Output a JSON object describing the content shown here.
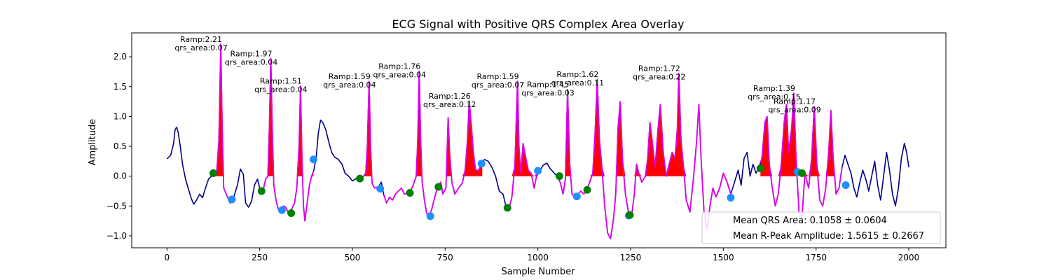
{
  "chart_data": {
    "type": "line",
    "title": "ECG Signal with Positive QRS Complex Area Overlay",
    "xlabel": "Sample Number",
    "ylabel": "Amplitude",
    "xlim": [
      -95,
      2100
    ],
    "ylim": [
      -1.2,
      2.4
    ],
    "xticks": [
      0,
      250,
      500,
      750,
      1000,
      1250,
      1500,
      1750,
      2000
    ],
    "yticks": [
      -1.0,
      -0.5,
      0.0,
      0.5,
      1.0,
      1.5,
      2.0
    ],
    "grid": false,
    "legend_position": "lower right",
    "legend": [
      "Mean QRS Area: 0.1058 ± 0.0604",
      "Mean R-Peak Amplitude: 1.5615 ± 0.2667"
    ],
    "colors": {
      "signal": "#00008b",
      "qrs_segment": "#dd00ee",
      "area_fill": "#ff0000",
      "onset_marker": "#008000",
      "offset_marker": "#1e90ff"
    },
    "r_peaks": [
      {
        "x": 145,
        "amp": 2.21,
        "area": 0.07,
        "label1": "Ramp:2.21",
        "label2": "qrs_area:0.07",
        "ly": 2.12
      },
      {
        "x": 280,
        "amp": 1.97,
        "area": 0.04,
        "label1": "Ramp:1.97",
        "label2": "qrs_area:0.04",
        "ly": 1.88
      },
      {
        "x": 360,
        "amp": 1.51,
        "area": 0.04,
        "label1": "Ramp:1.51",
        "label2": "qrs_area:0.04",
        "ly": 1.42
      },
      {
        "x": 545,
        "amp": 1.59,
        "area": 0.04,
        "label1": "Ramp:1.59",
        "label2": "qrs_area:0.04",
        "ly": 1.5
      },
      {
        "x": 680,
        "amp": 1.76,
        "area": 0.04,
        "label1": "Ramp:1.76",
        "label2": "qrs_area:0.04",
        "ly": 1.67
      },
      {
        "x": 815,
        "amp": 1.26,
        "area": 0.12,
        "label1": "Ramp:1.26",
        "label2": "qrs_area:0.12",
        "ly": 1.17
      },
      {
        "x": 945,
        "amp": 1.59,
        "area": 0.07,
        "label1": "Ramp:1.59",
        "label2": "qrs_area:0.07",
        "ly": 1.5
      },
      {
        "x": 1080,
        "amp": 1.45,
        "area": 0.03,
        "label1": "Ramp:1.45",
        "label2": "qrs_area:0.03",
        "ly": 1.36
      },
      {
        "x": 1160,
        "amp": 1.62,
        "area": 0.11,
        "label1": "Ramp:1.62",
        "label2": "qrs_area:0.11",
        "ly": 1.53
      },
      {
        "x": 1380,
        "amp": 1.72,
        "area": 0.22,
        "label1": "Ramp:1.72",
        "label2": "qrs_area:0.22",
        "ly": 1.63
      },
      {
        "x": 1690,
        "amp": 1.39,
        "area": 0.15,
        "label1": "Ramp:1.39",
        "label2": "qrs_area:0.15",
        "ly": 1.3
      },
      {
        "x": 1745,
        "amp": 1.17,
        "area": 0.09,
        "label1": "Ramp:1.17",
        "label2": "qrs_area:0.09",
        "ly": 1.08
      }
    ],
    "signal": [
      [
        0,
        0.29
      ],
      [
        10,
        0.35
      ],
      [
        18,
        0.55
      ],
      [
        22,
        0.78
      ],
      [
        26,
        0.82
      ],
      [
        30,
        0.74
      ],
      [
        36,
        0.5
      ],
      [
        42,
        0.2
      ],
      [
        50,
        -0.05
      ],
      [
        58,
        -0.22
      ],
      [
        66,
        -0.38
      ],
      [
        72,
        -0.47
      ],
      [
        80,
        -0.4
      ],
      [
        88,
        -0.3
      ],
      [
        96,
        -0.36
      ],
      [
        104,
        -0.2
      ],
      [
        112,
        -0.05
      ],
      [
        120,
        0.0
      ],
      [
        128,
        0.08
      ],
      [
        134,
        0.05
      ],
      [
        140,
        0.6
      ],
      [
        145,
        2.21
      ],
      [
        149,
        0.8
      ],
      [
        153,
        -0.2
      ],
      [
        160,
        -0.3
      ],
      [
        170,
        -0.45
      ],
      [
        180,
        -0.35
      ],
      [
        190,
        -0.15
      ],
      [
        198,
        0.12
      ],
      [
        206,
        0.03
      ],
      [
        212,
        -0.45
      ],
      [
        220,
        -0.52
      ],
      [
        228,
        -0.42
      ],
      [
        236,
        -0.15
      ],
      [
        244,
        -0.05
      ],
      [
        252,
        -0.25
      ],
      [
        260,
        -0.22
      ],
      [
        266,
        -0.05
      ],
      [
        272,
        0.0
      ],
      [
        276,
        0.8
      ],
      [
        280,
        1.97
      ],
      [
        284,
        0.8
      ],
      [
        288,
        -0.15
      ],
      [
        294,
        -0.4
      ],
      [
        300,
        -0.55
      ],
      [
        306,
        -0.58
      ],
      [
        314,
        -0.5
      ],
      [
        320,
        -0.52
      ],
      [
        328,
        -0.62
      ],
      [
        336,
        -0.55
      ],
      [
        344,
        -0.45
      ],
      [
        350,
        -0.2
      ],
      [
        356,
        0.5
      ],
      [
        360,
        1.51
      ],
      [
        364,
        0.3
      ],
      [
        368,
        -0.5
      ],
      [
        372,
        -0.75
      ],
      [
        378,
        -0.45
      ],
      [
        384,
        -0.15
      ],
      [
        390,
        0.0
      ],
      [
        396,
        0.1
      ],
      [
        402,
        0.3
      ],
      [
        408,
        0.72
      ],
      [
        414,
        0.94
      ],
      [
        420,
        0.9
      ],
      [
        428,
        0.78
      ],
      [
        436,
        0.58
      ],
      [
        444,
        0.4
      ],
      [
        452,
        0.32
      ],
      [
        462,
        0.28
      ],
      [
        472,
        0.2
      ],
      [
        480,
        0.05
      ],
      [
        490,
        0.0
      ],
      [
        500,
        -0.08
      ],
      [
        510,
        -0.04
      ],
      [
        520,
        -0.02
      ],
      [
        530,
        0.0
      ],
      [
        536,
        0.05
      ],
      [
        540,
        0.5
      ],
      [
        545,
        1.59
      ],
      [
        549,
        0.5
      ],
      [
        553,
        -0.12
      ],
      [
        560,
        -0.2
      ],
      [
        570,
        -0.18
      ],
      [
        578,
        -0.1
      ],
      [
        584,
        -0.3
      ],
      [
        592,
        -0.45
      ],
      [
        600,
        -0.35
      ],
      [
        608,
        -0.4
      ],
      [
        616,
        -0.3
      ],
      [
        624,
        -0.25
      ],
      [
        632,
        -0.2
      ],
      [
        640,
        -0.3
      ],
      [
        648,
        -0.28
      ],
      [
        656,
        -0.25
      ],
      [
        664,
        -0.15
      ],
      [
        672,
        0.0
      ],
      [
        676,
        0.6
      ],
      [
        680,
        1.76
      ],
      [
        684,
        0.6
      ],
      [
        688,
        -0.1
      ],
      [
        694,
        -0.4
      ],
      [
        700,
        -0.62
      ],
      [
        706,
        -0.68
      ],
      [
        714,
        -0.55
      ],
      [
        722,
        -0.35
      ],
      [
        730,
        -0.18
      ],
      [
        738,
        -0.1
      ],
      [
        744,
        -0.3
      ],
      [
        752,
        -0.2
      ],
      [
        758,
        0.98
      ],
      [
        762,
        0.4
      ],
      [
        768,
        -0.1
      ],
      [
        776,
        -0.3
      ],
      [
        786,
        -0.2
      ],
      [
        796,
        -0.12
      ],
      [
        804,
        0.1
      ],
      [
        810,
        0.6
      ],
      [
        815,
        1.26
      ],
      [
        820,
        0.9
      ],
      [
        826,
        0.4
      ],
      [
        832,
        0.1
      ],
      [
        840,
        0.1
      ],
      [
        848,
        0.2
      ],
      [
        856,
        0.28
      ],
      [
        866,
        0.25
      ],
      [
        876,
        0.15
      ],
      [
        886,
        0.0
      ],
      [
        896,
        -0.25
      ],
      [
        906,
        -0.3
      ],
      [
        914,
        -0.5
      ],
      [
        922,
        -0.55
      ],
      [
        930,
        -0.35
      ],
      [
        938,
        0.2
      ],
      [
        942,
        1.0
      ],
      [
        945,
        1.59
      ],
      [
        949,
        0.5
      ],
      [
        954,
        0.05
      ],
      [
        960,
        0.55
      ],
      [
        966,
        0.35
      ],
      [
        974,
        0.1
      ],
      [
        982,
        0.05
      ],
      [
        990,
        -0.2
      ],
      [
        998,
        0.05
      ],
      [
        1006,
        0.1
      ],
      [
        1014,
        0.18
      ],
      [
        1024,
        0.22
      ],
      [
        1034,
        0.12
      ],
      [
        1044,
        0.05
      ],
      [
        1052,
        0.0
      ],
      [
        1060,
        -0.1
      ],
      [
        1068,
        -0.3
      ],
      [
        1074,
        -0.05
      ],
      [
        1080,
        1.45
      ],
      [
        1086,
        0.2
      ],
      [
        1092,
        -0.3
      ],
      [
        1100,
        -0.35
      ],
      [
        1108,
        -0.3
      ],
      [
        1116,
        -0.25
      ],
      [
        1124,
        -0.3
      ],
      [
        1132,
        -0.22
      ],
      [
        1140,
        -0.1
      ],
      [
        1148,
        0.05
      ],
      [
        1154,
        0.7
      ],
      [
        1160,
        1.62
      ],
      [
        1166,
        0.6
      ],
      [
        1172,
        0.2
      ],
      [
        1180,
        -0.5
      ],
      [
        1188,
        -0.95
      ],
      [
        1196,
        -1.05
      ],
      [
        1204,
        -0.7
      ],
      [
        1210,
        -0.3
      ],
      [
        1216,
        0.8
      ],
      [
        1222,
        1.25
      ],
      [
        1228,
        0.3
      ],
      [
        1236,
        -0.3
      ],
      [
        1244,
        -0.6
      ],
      [
        1252,
        -0.7
      ],
      [
        1260,
        -0.3
      ],
      [
        1266,
        0.2
      ],
      [
        1272,
        0.05
      ],
      [
        1280,
        -0.1
      ],
      [
        1290,
        0.0
      ],
      [
        1296,
        0.3
      ],
      [
        1302,
        0.9
      ],
      [
        1308,
        0.6
      ],
      [
        1316,
        0.15
      ],
      [
        1324,
        0.8
      ],
      [
        1330,
        1.2
      ],
      [
        1338,
        0.4
      ],
      [
        1346,
        0.0
      ],
      [
        1354,
        0.2
      ],
      [
        1362,
        0.4
      ],
      [
        1370,
        0.3
      ],
      [
        1376,
        0.8
      ],
      [
        1380,
        1.72
      ],
      [
        1386,
        0.6
      ],
      [
        1392,
        0.2
      ],
      [
        1400,
        -0.4
      ],
      [
        1410,
        -0.6
      ],
      [
        1420,
        0.0
      ],
      [
        1428,
        0.6
      ],
      [
        1434,
        1.2
      ],
      [
        1440,
        0.3
      ],
      [
        1448,
        -0.6
      ],
      [
        1456,
        -0.9
      ],
      [
        1464,
        -0.5
      ],
      [
        1472,
        -0.2
      ],
      [
        1480,
        -0.35
      ],
      [
        1490,
        -0.2
      ],
      [
        1500,
        0.05
      ],
      [
        1510,
        -0.1
      ],
      [
        1520,
        -0.3
      ],
      [
        1530,
        -0.1
      ],
      [
        1540,
        0.1
      ],
      [
        1548,
        -0.15
      ],
      [
        1556,
        0.3
      ],
      [
        1564,
        0.4
      ],
      [
        1572,
        0.0
      ],
      [
        1580,
        0.2
      ],
      [
        1588,
        0.05
      ],
      [
        1596,
        0.15
      ],
      [
        1604,
        0.3
      ],
      [
        1612,
        0.9
      ],
      [
        1618,
        1.0
      ],
      [
        1624,
        0.2
      ],
      [
        1632,
        -0.2
      ],
      [
        1640,
        -0.5
      ],
      [
        1648,
        -0.3
      ],
      [
        1656,
        0.2
      ],
      [
        1664,
        0.9
      ],
      [
        1670,
        1.2
      ],
      [
        1676,
        0.4
      ],
      [
        1684,
        0.8
      ],
      [
        1690,
        1.39
      ],
      [
        1696,
        0.3
      ],
      [
        1704,
        -0.6
      ],
      [
        1712,
        -0.7
      ],
      [
        1720,
        0.05
      ],
      [
        1730,
        -0.2
      ],
      [
        1738,
        0.3
      ],
      [
        1745,
        1.17
      ],
      [
        1752,
        0.2
      ],
      [
        1760,
        -0.4
      ],
      [
        1768,
        -0.5
      ],
      [
        1776,
        -0.2
      ],
      [
        1784,
        0.4
      ],
      [
        1790,
        1.1
      ],
      [
        1796,
        0.3
      ],
      [
        1804,
        -0.3
      ],
      [
        1812,
        -0.2
      ],
      [
        1820,
        0.15
      ],
      [
        1828,
        0.35
      ],
      [
        1836,
        0.2
      ],
      [
        1844,
        0.05
      ],
      [
        1852,
        -0.2
      ],
      [
        1860,
        -0.35
      ],
      [
        1868,
        -0.1
      ],
      [
        1876,
        0.1
      ],
      [
        1884,
        -0.05
      ],
      [
        1892,
        -0.25
      ],
      [
        1900,
        0.0
      ],
      [
        1908,
        0.25
      ],
      [
        1916,
        -0.15
      ],
      [
        1924,
        -0.4
      ],
      [
        1932,
        0.0
      ],
      [
        1940,
        0.4
      ],
      [
        1948,
        0.1
      ],
      [
        1956,
        -0.3
      ],
      [
        1964,
        -0.5
      ],
      [
        1972,
        -0.2
      ],
      [
        1980,
        0.3
      ],
      [
        1988,
        0.55
      ],
      [
        1994,
        0.4
      ],
      [
        2000,
        0.15
      ]
    ],
    "qrs_segments": [
      [
        120,
        175
      ],
      [
        255,
        335
      ],
      [
        335,
        395
      ],
      [
        520,
        570
      ],
      [
        585,
        705
      ],
      [
        705,
        740
      ],
      [
        740,
        850
      ],
      [
        915,
        1000
      ],
      [
        1050,
        1135
      ],
      [
        1135,
        1250
      ],
      [
        1250,
        1400
      ],
      [
        1400,
        1520
      ],
      [
        1600,
        1690
      ],
      [
        1690,
        1720
      ],
      [
        1720,
        1820
      ]
    ],
    "area_fills": [
      [
        120,
        160
      ],
      [
        255,
        295
      ],
      [
        335,
        395
      ],
      [
        520,
        560
      ],
      [
        650,
        690
      ],
      [
        740,
        850
      ],
      [
        920,
        1000
      ],
      [
        1060,
        1090
      ],
      [
        1140,
        1240
      ],
      [
        1255,
        1420
      ],
      [
        1600,
        1700
      ],
      [
        1710,
        1800
      ]
    ],
    "onset_markers": [
      [
        125,
        0.05
      ],
      [
        255,
        -0.25
      ],
      [
        335,
        -0.62
      ],
      [
        520,
        -0.04
      ],
      [
        655,
        -0.28
      ],
      [
        732,
        -0.18
      ],
      [
        918,
        -0.53
      ],
      [
        1058,
        0.0
      ],
      [
        1133,
        -0.23
      ],
      [
        1248,
        -0.65
      ],
      [
        1600,
        0.13
      ],
      [
        1712,
        0.05
      ]
    ],
    "offset_markers": [
      [
        175,
        -0.39
      ],
      [
        310,
        -0.57
      ],
      [
        395,
        0.28
      ],
      [
        575,
        -0.21
      ],
      [
        710,
        -0.67
      ],
      [
        848,
        0.21
      ],
      [
        1000,
        0.09
      ],
      [
        1105,
        -0.34
      ],
      [
        1245,
        -0.66
      ],
      [
        1520,
        -0.36
      ],
      [
        1700,
        0.07
      ],
      [
        1830,
        -0.15
      ]
    ]
  }
}
